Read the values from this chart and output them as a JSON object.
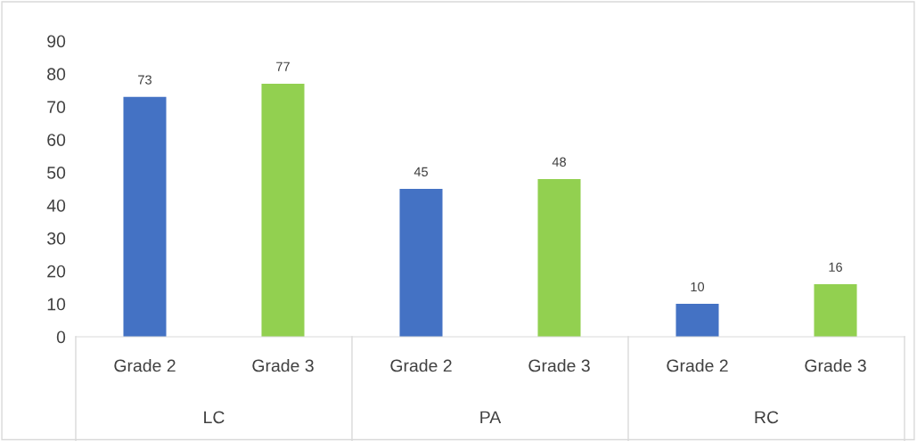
{
  "chart_data": {
    "type": "bar",
    "categories": [
      "Grade 2",
      "Grade 3",
      "Grade 2",
      "Grade 3",
      "Grade 2",
      "Grade 3"
    ],
    "values": [
      73,
      77,
      45,
      48,
      10,
      16
    ],
    "colors": [
      "#4472c4",
      "#92d050",
      "#4472c4",
      "#92d050",
      "#4472c4",
      "#92d050"
    ],
    "annotations": [
      "LC",
      "PA",
      "RC"
    ],
    "ylim": [
      0,
      90
    ],
    "yticks": [
      0,
      10,
      20,
      30,
      40,
      50,
      60,
      70,
      80,
      90
    ],
    "data_labels": true,
    "grid": false,
    "legend": false
  }
}
